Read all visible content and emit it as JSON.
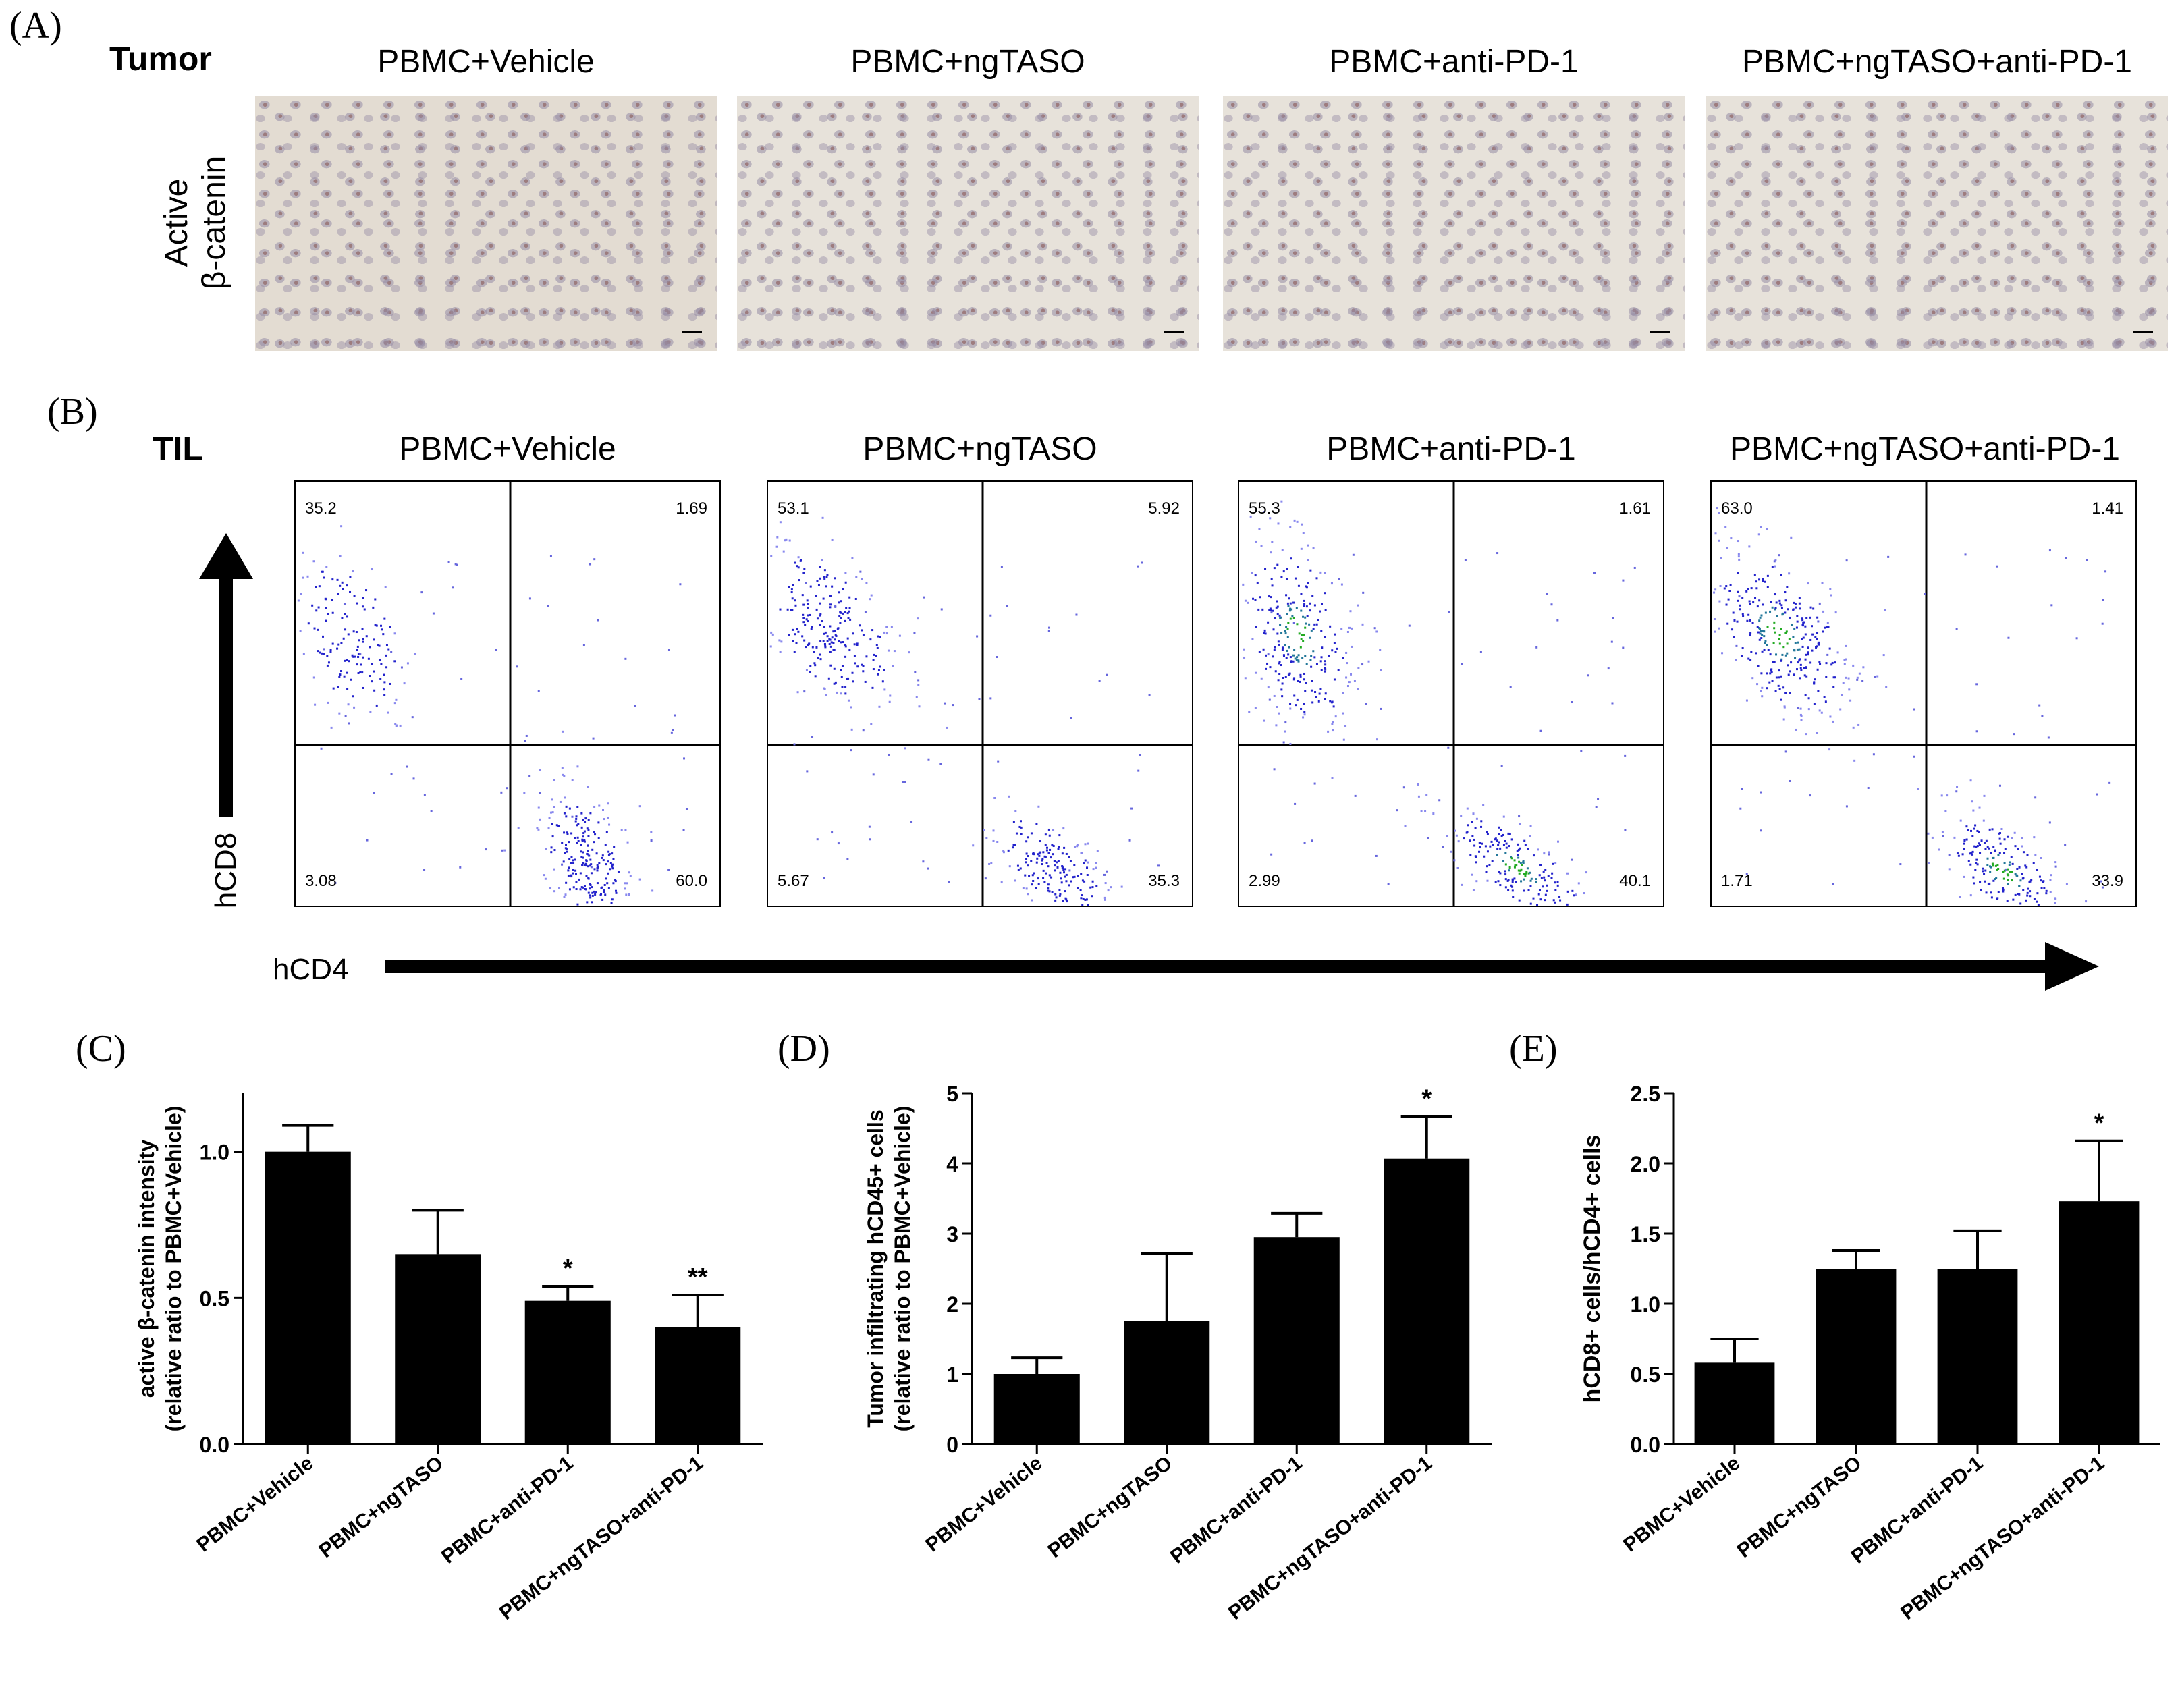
{
  "panels": {
    "a": {
      "letter": "(A)",
      "row_label": "Tumor",
      "stain_label_1": "Active",
      "stain_label_2": "β-catenin",
      "groups": [
        "PBMC+Vehicle",
        "PBMC+ngTASO",
        "PBMC+anti-PD-1",
        "PBMC+ngTASO+anti-PD-1"
      ]
    },
    "b": {
      "letter": "(B)",
      "row_label": "TIL",
      "y_axis": "hCD8",
      "x_axis": "hCD4",
      "groups": [
        "PBMC+Vehicle",
        "PBMC+ngTASO",
        "PBMC+anti-PD-1",
        "PBMC+ngTASO+anti-PD-1"
      ],
      "quadrants": [
        {
          "ul": "35.2",
          "ur": "1.69",
          "ll": "3.08",
          "lr": "60.0"
        },
        {
          "ul": "53.1",
          "ur": "5.92",
          "ll": "5.67",
          "lr": "35.3"
        },
        {
          "ul": "55.3",
          "ur": "1.61",
          "ll": "2.99",
          "lr": "40.1"
        },
        {
          "ul": "63.0",
          "ur": "1.41",
          "ll": "1.71",
          "lr": "33.9"
        }
      ]
    },
    "c": {
      "letter": "(C)"
    },
    "d": {
      "letter": "(D)"
    },
    "e": {
      "letter": "(E)"
    }
  },
  "chart_data": [
    {
      "type": "bar",
      "panel": "C",
      "categories": [
        "PBMC+Vehicle",
        "PBMC+ngTASO",
        "PBMC+anti-PD-1",
        "PBMC+ngTASO+anti-PD-1"
      ],
      "values": [
        1.0,
        0.65,
        0.49,
        0.4
      ],
      "errors": [
        0.09,
        0.15,
        0.05,
        0.11
      ],
      "significance": [
        "",
        "",
        "*",
        "**"
      ],
      "ylabel_line1": "active β-catenin intensity",
      "ylabel_line2": "(relative ratio to PBMC+Vehicle)",
      "ylim": [
        0,
        1.2
      ],
      "yticks": [
        0.0,
        0.5,
        1.0
      ],
      "ytick_labels": [
        "0.0",
        "0.5",
        "1.0"
      ],
      "color": "#000000"
    },
    {
      "type": "bar",
      "panel": "D",
      "categories": [
        "PBMC+Vehicle",
        "PBMC+ngTASO",
        "PBMC+anti-PD-1",
        "PBMC+ngTASO+anti-PD-1"
      ],
      "values": [
        1.0,
        1.75,
        2.95,
        4.07
      ],
      "errors": [
        0.23,
        0.97,
        0.34,
        0.6
      ],
      "significance": [
        "",
        "",
        "",
        "*"
      ],
      "ylabel_line1": "Tumor infiltrating hCD45+ cells",
      "ylabel_line2": "(relative ratio to PBMC+Vehicle)",
      "ylim": [
        0,
        5
      ],
      "yticks": [
        0,
        1,
        2,
        3,
        4,
        5
      ],
      "ytick_labels": [
        "0",
        "1",
        "2",
        "3",
        "4",
        "5"
      ],
      "color": "#000000"
    },
    {
      "type": "bar",
      "panel": "E",
      "categories": [
        "PBMC+Vehicle",
        "PBMC+ngTASO",
        "PBMC+anti-PD-1",
        "PBMC+ngTASO+anti-PD-1"
      ],
      "values": [
        0.58,
        1.25,
        1.25,
        1.73
      ],
      "errors": [
        0.17,
        0.13,
        0.27,
        0.43
      ],
      "significance": [
        "",
        "",
        "",
        "*"
      ],
      "ylabel_line1": "hCD8+ cells/hCD4+ cells",
      "ylabel_line2": "",
      "ylim": [
        0,
        2.5
      ],
      "yticks": [
        0.0,
        0.5,
        1.0,
        1.5,
        2.0,
        2.5
      ],
      "ytick_labels": [
        "0.0",
        "0.5",
        "1.0",
        "1.5",
        "2.0",
        "2.5"
      ],
      "color": "#000000"
    }
  ]
}
